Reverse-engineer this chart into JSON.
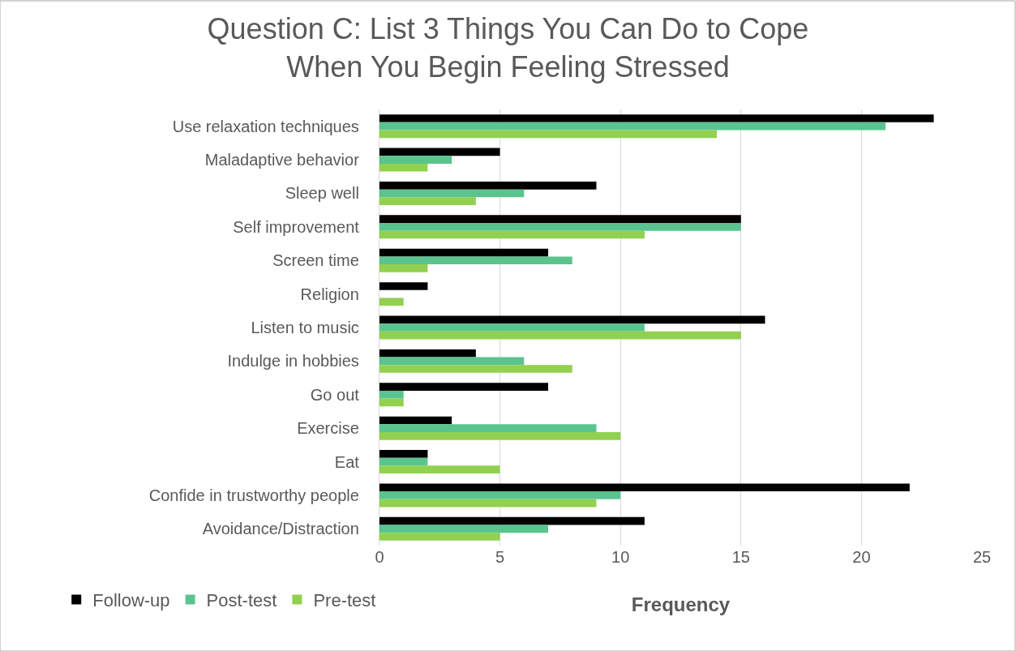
{
  "chart_data": {
    "type": "bar",
    "orientation": "horizontal",
    "title": "Question C: List 3 Things You Can Do to Cope\nWhen You Begin Feeling Stressed",
    "xlabel": "Frequency",
    "categories": [
      "Use relaxation techniques",
      "Maladaptive behavior",
      "Sleep well",
      "Self improvement",
      "Screen time",
      "Religion",
      "Listen to music",
      "Indulge in hobbies",
      "Go out",
      "Exercise",
      "Eat",
      "Confide in trustworthy people",
      "Avoidance/Distraction"
    ],
    "series": [
      {
        "name": "Follow-up",
        "color": "#000000",
        "values": [
          23,
          5,
          9,
          15,
          7,
          2,
          16,
          4,
          7,
          3,
          2,
          22,
          11
        ]
      },
      {
        "name": "Post-test",
        "color": "#5ac48f",
        "values": [
          21,
          3,
          6,
          15,
          8,
          0,
          11,
          6,
          1,
          9,
          2,
          10,
          7
        ]
      },
      {
        "name": "Pre-test",
        "color": "#92d050",
        "values": [
          14,
          2,
          4,
          11,
          2,
          1,
          15,
          8,
          1,
          10,
          5,
          9,
          5
        ]
      }
    ],
    "xlim": [
      0,
      25
    ],
    "xticks": [
      0,
      5,
      10,
      15,
      20,
      25
    ],
    "grid": "x",
    "legend": "bottom left"
  }
}
